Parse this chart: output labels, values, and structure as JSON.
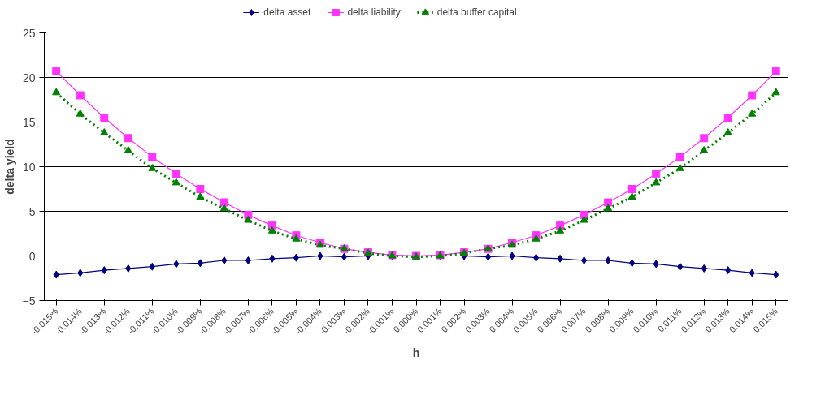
{
  "chart_data": {
    "type": "line",
    "xlabel": "h",
    "ylabel": "delta yield",
    "categories": [
      "-0.015%",
      "-0.014%",
      "-0.013%",
      "-0.012%",
      "-0.011%",
      "-0.010%",
      "-0.009%",
      "-0.008%",
      "-0.007%",
      "-0.006%",
      "-0.005%",
      "-0.004%",
      "-0.003%",
      "-0.002%",
      "-0.001%",
      "0.000%",
      "0.001%",
      "0.002%",
      "0.003%",
      "0.004%",
      "0.005%",
      "0.006%",
      "0.007%",
      "0.008%",
      "0.009%",
      "0.010%",
      "0.011%",
      "0.012%",
      "0.013%",
      "0.014%",
      "0.015%"
    ],
    "series": [
      {
        "name": "delta asset",
        "color": "#000080",
        "marker": "diamond",
        "line_style": "solid",
        "values": [
          -2.1,
          -1.9,
          -1.6,
          -1.4,
          -1.2,
          -0.9,
          -0.8,
          -0.5,
          -0.5,
          -0.3,
          -0.2,
          0,
          -0.1,
          0,
          0,
          0,
          0,
          0,
          -0.1,
          0,
          -0.2,
          -0.3,
          -0.5,
          -0.5,
          -0.8,
          -0.9,
          -1.2,
          -1.4,
          -1.6,
          -1.9,
          -2.1
        ]
      },
      {
        "name": "delta liability",
        "color": "#ff33ff",
        "marker": "square",
        "line_style": "solid",
        "values": [
          20.7,
          18.0,
          15.5,
          13.2,
          11.1,
          9.2,
          7.5,
          6.0,
          4.6,
          3.4,
          2.3,
          1.5,
          0.8,
          0.4,
          0.1,
          0,
          0.1,
          0.4,
          0.8,
          1.5,
          2.3,
          3.4,
          4.6,
          6.0,
          7.5,
          9.2,
          11.1,
          13.2,
          15.5,
          18.0,
          20.7
        ]
      },
      {
        "name": "delta buffer capital",
        "color": "#008000",
        "marker": "triangle",
        "line_style": "dotted",
        "values": [
          18.3,
          15.9,
          13.8,
          11.8,
          9.8,
          8.2,
          6.6,
          5.3,
          4.0,
          2.8,
          1.9,
          1.2,
          0.8,
          0.3,
          0,
          -0.1,
          0,
          0.3,
          0.8,
          1.2,
          1.9,
          2.8,
          4.0,
          5.3,
          6.6,
          8.2,
          9.8,
          11.8,
          13.8,
          15.9,
          18.3
        ]
      }
    ],
    "ylim": [
      -5,
      25
    ],
    "yticks": [
      -5,
      0,
      5,
      10,
      15,
      20,
      25
    ],
    "grid": "y",
    "legend": "top"
  }
}
